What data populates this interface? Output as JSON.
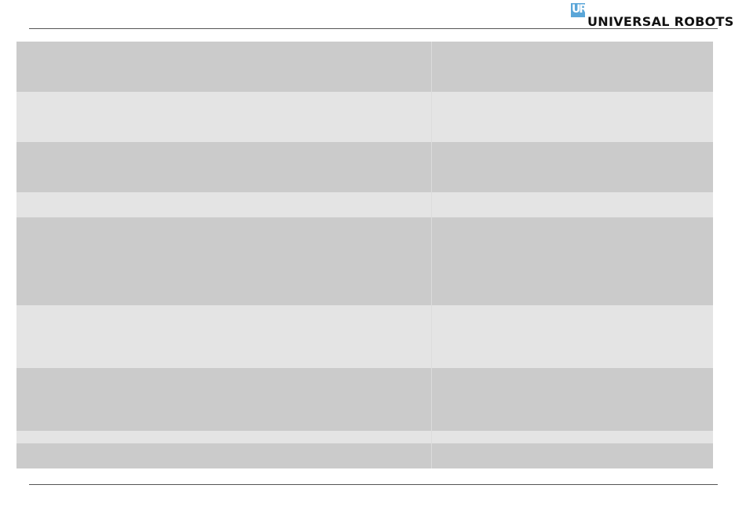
{
  "header": {
    "logo_mark": "UR",
    "logo_text": "UNIVERSAL ROBOTS",
    "brand_color": "#5aa6d8"
  },
  "table": {
    "rows": [
      {
        "shade": "dark",
        "height": 64
      },
      {
        "shade": "light",
        "height": 64
      },
      {
        "shade": "dark",
        "height": 64
      },
      {
        "shade": "light",
        "height": 32
      },
      {
        "shade": "dark",
        "height": 112
      },
      {
        "shade": "light",
        "height": 80
      },
      {
        "shade": "dark",
        "height": 80
      },
      {
        "shade": "light",
        "height": 16
      },
      {
        "shade": "dark",
        "height": 32
      }
    ]
  }
}
